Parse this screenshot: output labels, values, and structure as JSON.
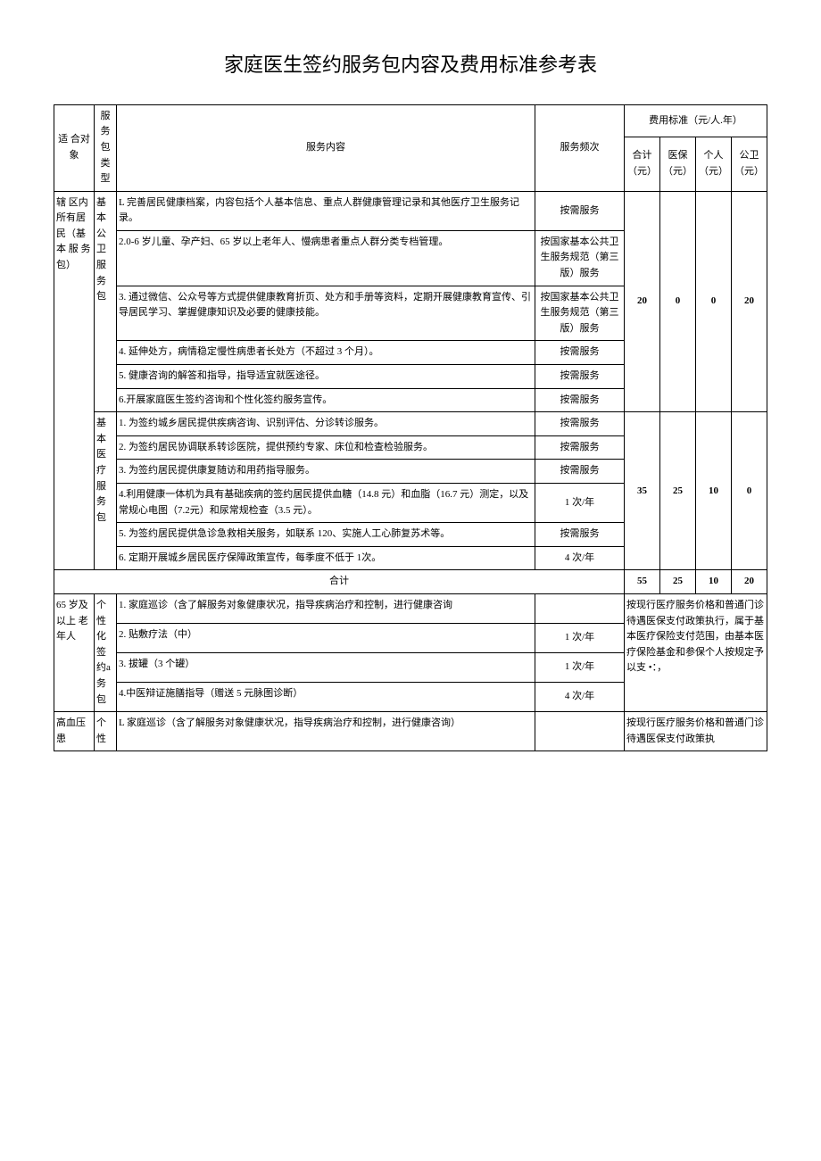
{
  "title": "家庭医生签约服务包内容及费用标准参考表",
  "header": {
    "target": "适 合对象",
    "pkg": "服务包类型",
    "content": "服务内容",
    "freq": "服务频次",
    "fee_group": "费用标准（元/人.年）",
    "fee_total": "合计（元）",
    "fee_insurance": "医保（元）",
    "fee_personal": "个人（元）",
    "fee_public": "公卫（元）"
  },
  "section1": {
    "target": "辖 区内 所有居 民（基本 服 务包）",
    "pkg1": "基本公卫服务包",
    "pkg2": "基本医疗服务包",
    "rows1": [
      {
        "content": "L 完善居民健康档案，内容包括个人基本信息、重点人群健康管理记录和其他医疗卫生服务记录。",
        "freq": "按需服务"
      },
      {
        "content": "2.0-6 岁儿童、孕产妇、65 岁以上老年人、慢病患者重点人群分类专档管理。",
        "freq": "按国家基本公共卫生服务规范（第三版）服务"
      },
      {
        "content": "3. 通过微信、公众号等方式提供健康教育折页、处方和手册等资料，定期开展健康教育宣传、引导居民学习、掌握健康知识及必要的健康技能。",
        "freq": "按国家基本公共卫生服务规范（第三版）服务"
      },
      {
        "content": "4. 延伸处方，病情稳定慢性病患者长处方（不超过 3 个月）。",
        "freq": "按需服务"
      },
      {
        "content": "5. 健康咨询的解答和指导，指导适宜就医途径。",
        "freq": "按需服务"
      },
      {
        "content": "6.开展家庭医生签约咨询和个性化签约服务宣传。",
        "freq": "按需服务"
      }
    ],
    "fee1": {
      "total": "20",
      "insurance": "0",
      "personal": "0",
      "public": "20"
    },
    "rows2": [
      {
        "content": "1. 为签约城乡居民提供疾病咨询、识别评估、分诊转诊服务。",
        "freq": "按需服务"
      },
      {
        "content": "2. 为签约居民协调联系转诊医院，提供预约专家、床位和检查检验服务。",
        "freq": "按需服务"
      },
      {
        "content": "3. 为签约居民提供康复随访和用药指导服务。",
        "freq": "按需服务"
      },
      {
        "content": "4.利用健康一体机为具有基础疾病的签约居民提供血糖（14.8 元）和血脂（16.7 元）测定，以及常规心电图（7.2元）和尿常规检查（3.5 元）。",
        "freq": "1 次/年"
      },
      {
        "content": "5. 为签约居民提供急诊急救相关服务，如联系 120、实施人工心肺复苏术等。",
        "freq": "按需服务"
      },
      {
        "content": "6. 定期开展城乡居民医疗保障政策宣传，每季度不低于 1次。",
        "freq": "4 次/年"
      }
    ],
    "fee2": {
      "total": "35",
      "insurance": "25",
      "personal": "10",
      "public": "0"
    },
    "subtotal_label": "合计",
    "subtotal": {
      "total": "55",
      "insurance": "25",
      "personal": "10",
      "public": "20"
    }
  },
  "section2": {
    "target": "65 岁及 以上 老年人",
    "pkg": "个性化签约a务包",
    "rows": [
      {
        "content": "1. 家庭巡诊（含了解服务对象健康状况，指导疾病治疗和控制，进行健康咨询",
        "freq": ""
      },
      {
        "content": "2. 贴敷疗法（中）",
        "freq": "1 次/年"
      },
      {
        "content": "3. 拔罐（3 个罐）",
        "freq": "1 次/年"
      },
      {
        "content": "4.中医辩证施膳指导（赠送 5 元脉图诊断）",
        "freq": "4 次/年"
      }
    ],
    "fee_note": "按现行医疗服务价格和普通门诊待遇医保支付政策执行，属于基本医疗保险支付范围，由基本医疗保险基金和参保个人按规定予以支\n•：，"
  },
  "section3": {
    "target": "高血压患",
    "pkg": "个性",
    "rows": [
      {
        "content": "L 家庭巡诊（含了解服务对象健康状况，指导疾病治疗和控制，进行健康咨询）",
        "freq": ""
      }
    ],
    "fee_note": "按现行医疗服务价格和普通门诊待遇医保支付政策执"
  }
}
